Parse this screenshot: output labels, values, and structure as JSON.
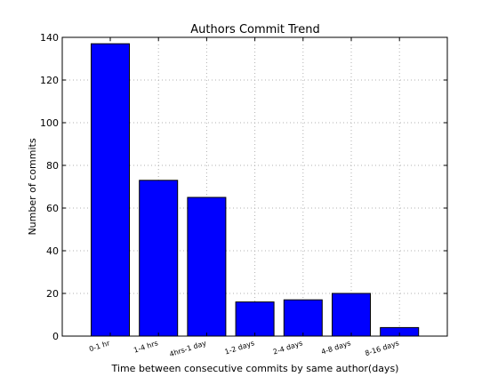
{
  "chart_data": {
    "type": "bar",
    "title": "Authors Commit Trend",
    "xlabel": "Time between consecutive commits by same author(days)",
    "ylabel": "Number of commits",
    "categories": [
      "0-1 hr",
      "1-4 hrs",
      "4hrs-1 day",
      "1-2 days",
      "2-4 days",
      "4-8 days",
      "8-16 days"
    ],
    "values": [
      137,
      73,
      65,
      16,
      17,
      20,
      4
    ],
    "ylim": [
      0,
      140
    ],
    "yticks": [
      0,
      20,
      40,
      60,
      80,
      100,
      120,
      140
    ],
    "grid": true,
    "bar_color": "#0000ff"
  }
}
